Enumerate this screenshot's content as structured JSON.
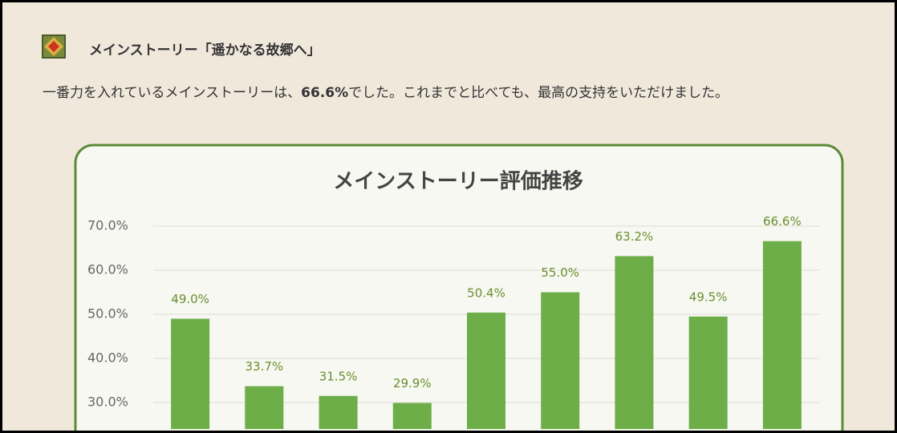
{
  "header": {
    "title": "メインストーリー「遥かなる故郷へ」"
  },
  "paragraph": [
    "一番力を入れているメインストーリーは、",
    "66.6%",
    "でした。これまでと比べても、最高の支持をいただけました。"
  ],
  "chart_data": {
    "type": "bar",
    "title": "メインストーリー評価推移",
    "values": [
      49.0,
      33.7,
      31.5,
      29.9,
      50.4,
      55.0,
      63.2,
      49.5,
      66.6
    ],
    "value_labels": [
      "49.0%",
      "33.7%",
      "31.5%",
      "29.9%",
      "50.4%",
      "55.0%",
      "63.2%",
      "49.5%",
      "66.6%"
    ],
    "color": "#6dae48",
    "ylim": [
      24,
      70
    ],
    "yticks": [
      {
        "value": 30,
        "label": "30.0%"
      },
      {
        "value": 40,
        "label": "40.0%"
      },
      {
        "value": 50,
        "label": "50.0%"
      },
      {
        "value": 60,
        "label": "60.0%"
      },
      {
        "value": 70,
        "label": "70.0%"
      }
    ],
    "grid": true
  }
}
